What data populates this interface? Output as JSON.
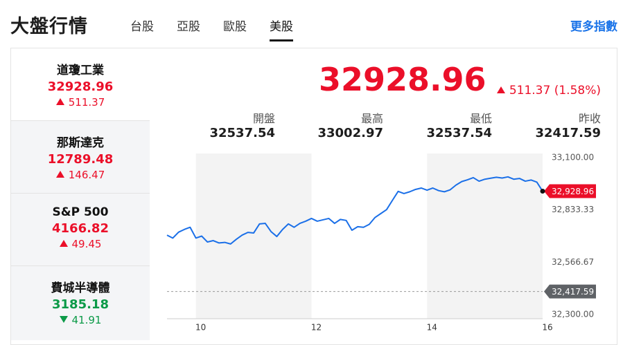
{
  "header": {
    "title": "大盤行情",
    "tabs": [
      {
        "label": "台股",
        "active": false
      },
      {
        "label": "亞股",
        "active": false
      },
      {
        "label": "歐股",
        "active": false
      },
      {
        "label": "美股",
        "active": true
      }
    ],
    "more_link": "更多指數"
  },
  "indices": [
    {
      "name": "道瓊工業",
      "value": 32928.96,
      "change": 511.37,
      "direction": "up",
      "selected": true
    },
    {
      "name": "那斯達克",
      "value": 12789.48,
      "change": 146.47,
      "direction": "up",
      "selected": false
    },
    {
      "name": "S&P 500",
      "value": 4166.82,
      "change": 49.45,
      "direction": "up",
      "selected": false
    },
    {
      "name": "費城半導體",
      "value": 3185.18,
      "change": 41.91,
      "direction": "down",
      "selected": false
    }
  ],
  "quote": {
    "price": 32928.96,
    "change": 511.37,
    "change_pct": "(1.58%)",
    "direction": "up",
    "stats": [
      {
        "label": "開盤",
        "value": 32537.54
      },
      {
        "label": "最高",
        "value": 33002.97
      },
      {
        "label": "最低",
        "value": 32537.54
      },
      {
        "label": "昨收",
        "value": 32417.59
      }
    ]
  },
  "chart": {
    "type": "line",
    "color": "#1a6fe8",
    "x": [
      9.5,
      9.6,
      9.7,
      9.8,
      9.9,
      10.0,
      10.1,
      10.2,
      10.3,
      10.4,
      10.5,
      10.6,
      10.7,
      10.8,
      10.9,
      11.0,
      11.1,
      11.2,
      11.3,
      11.4,
      11.5,
      11.6,
      11.7,
      11.8,
      11.9,
      12.0,
      12.1,
      12.2,
      12.3,
      12.4,
      12.5,
      12.6,
      12.7,
      12.8,
      12.9,
      13.0,
      13.1,
      13.2,
      13.3,
      13.4,
      13.5,
      13.6,
      13.7,
      13.8,
      13.9,
      14.0,
      14.1,
      14.2,
      14.3,
      14.4,
      14.5,
      14.6,
      14.7,
      14.8,
      14.9,
      15.0,
      15.1,
      15.2,
      15.3,
      15.4,
      15.5,
      15.6,
      15.7,
      15.8,
      15.9,
      16.0
    ],
    "values": [
      32705,
      32690,
      32720,
      32734,
      32745,
      32690,
      32700,
      32670,
      32677,
      32665,
      32668,
      32660,
      32684,
      32705,
      32719,
      32716,
      32762,
      32765,
      32723,
      32698,
      32734,
      32762,
      32745,
      32765,
      32776,
      32790,
      32776,
      32783,
      32790,
      32765,
      32785,
      32780,
      32730,
      32748,
      32745,
      32760,
      32795,
      32815,
      32835,
      32882,
      32928,
      32917,
      32926,
      32938,
      32945,
      32934,
      32945,
      32932,
      32926,
      32936,
      32960,
      32978,
      32987,
      32998,
      32980,
      32990,
      32995,
      33000,
      32996,
      33002,
      32990,
      32994,
      32980,
      32986,
      32975,
      32928.96
    ],
    "xlim": [
      9.5,
      16
    ],
    "xticks": [
      10,
      12,
      14,
      16
    ],
    "ylim": [
      32300,
      33100
    ],
    "yticks": [
      {
        "value": 32300,
        "label": "32,300.00"
      },
      {
        "value": 32566.67,
        "label": "32,566.67"
      },
      {
        "value": 32833.33,
        "label": "32,833.33"
      },
      {
        "value": 33100,
        "label": "33,100.00"
      }
    ],
    "current": {
      "value": 32928.96,
      "label": "32,928.96"
    },
    "prev_close": {
      "value": 32417.59,
      "label": "32,417.59"
    }
  }
}
